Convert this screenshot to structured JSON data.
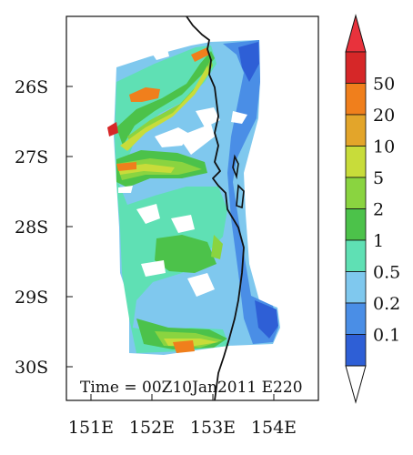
{
  "map": {
    "time_label": "Time = 00Z10Jan2011 E220",
    "lat_ticks": [
      "26S",
      "27S",
      "28S",
      "29S",
      "30S"
    ],
    "lon_ticks": [
      "151E",
      "152E",
      "153E",
      "154E"
    ],
    "extent": {
      "lon_min": 150.0,
      "lon_max": 155.0,
      "lat_top": -25.0,
      "lat_bottom": -30.45
    }
  },
  "colorbar": {
    "labels": [
      "50",
      "20",
      "10",
      "5",
      "2",
      "1",
      "0.5",
      "0.2",
      "0.1"
    ],
    "colors": [
      "#d62728",
      "#f07f1c",
      "#e3a52a",
      "#c8dc3a",
      "#8ad440",
      "#4cc24a",
      "#5fe0b4",
      "#7fc8ee",
      "#4a8ee6",
      "#2e5fd6"
    ],
    "top_arrow_color": "#e8323c",
    "bottom_arrow_color": "#ffffff"
  }
}
